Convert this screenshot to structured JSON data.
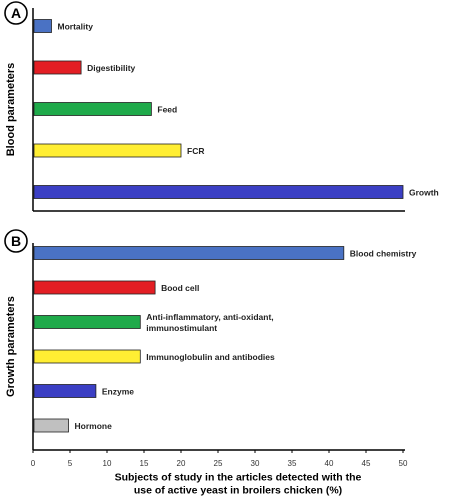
{
  "chart_data": [
    {
      "type": "bar",
      "orientation": "horizontal",
      "panel_label": "A",
      "ylabel": "Blood parameters",
      "categories": [
        "Mortality",
        "Digestibility",
        "Feed",
        "FCR",
        "Growth"
      ],
      "values": [
        2.5,
        6.5,
        16,
        20,
        50
      ],
      "colors": [
        "#4a72c4",
        "#e31e24",
        "#1faa4a",
        "#ffee33",
        "#3b3fc4"
      ],
      "xlim": [
        0,
        50
      ],
      "grid": false
    },
    {
      "type": "bar",
      "orientation": "horizontal",
      "panel_label": "B",
      "ylabel": "Growth parameters",
      "categories": [
        "Blood chemistry",
        "Bood cell",
        "Anti-inflammatory, anti-oxidant,\nimmunostimulant",
        "Immunoglobulin and antibodies",
        "Enzyme",
        "Hormone"
      ],
      "values": [
        42,
        16.5,
        14.5,
        14.5,
        8.5,
        4.8
      ],
      "colors": [
        "#4a72c4",
        "#e31e24",
        "#1faa4a",
        "#ffee33",
        "#3b3fc4",
        "#c0c0c0"
      ],
      "xlim": [
        0,
        50
      ],
      "xticks": [
        0,
        5,
        10,
        15,
        20,
        25,
        30,
        35,
        40,
        45,
        50
      ],
      "xlabel": "Subjects of study in the articles detected with the\nuse of active yeast in broilers chicken (%)",
      "grid": false
    }
  ]
}
